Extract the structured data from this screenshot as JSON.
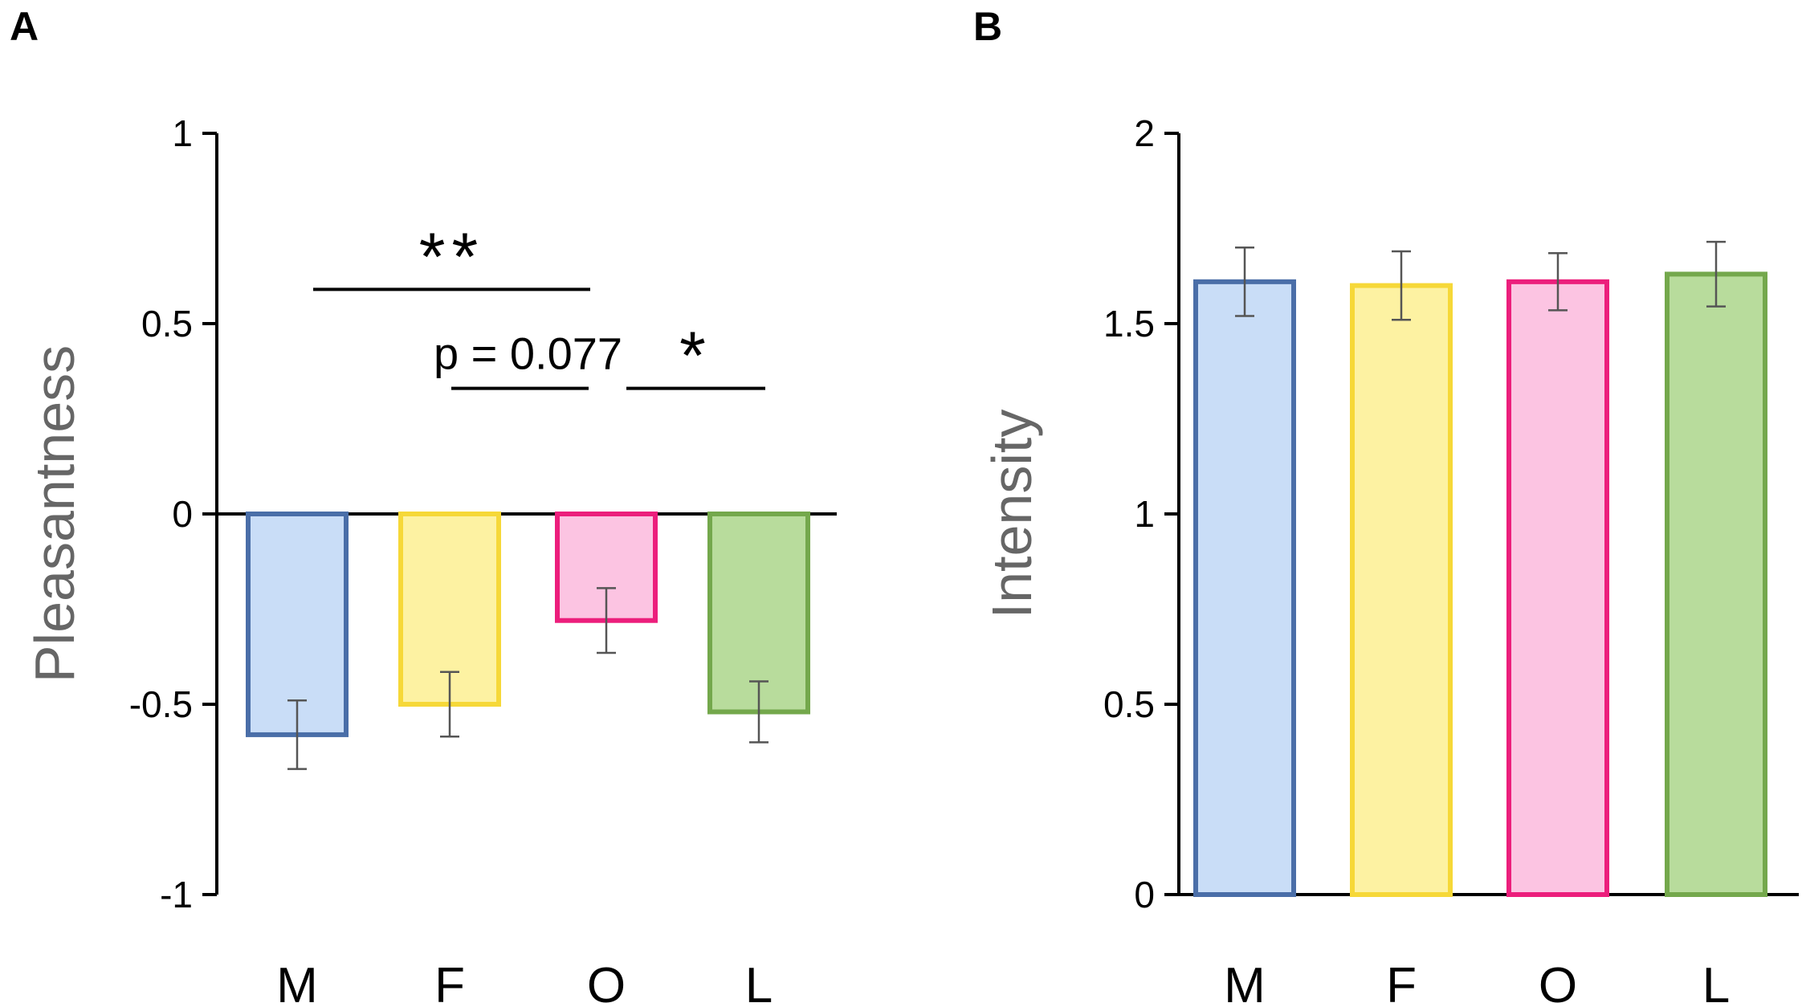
{
  "chart_data": [
    {
      "panel": "A",
      "type": "bar",
      "title": "",
      "xlabel": "",
      "ylabel": "Pleasantness",
      "ylim": [
        -1,
        1
      ],
      "yticks": [
        "1",
        "0.5",
        "0",
        "-0.5",
        "-1"
      ],
      "categories": [
        "M",
        "F",
        "O",
        "L"
      ],
      "values": [
        -0.58,
        -0.5,
        -0.28,
        -0.52
      ],
      "errors": [
        0.09,
        0.085,
        0.085,
        0.08
      ],
      "colors": {
        "fill": [
          "#c9ddf7",
          "#fdf2a2",
          "#fcc4e2",
          "#b8dc9c"
        ],
        "edge": [
          "#4a6ea8",
          "#f6d838",
          "#ec1e7c",
          "#74a84c"
        ]
      },
      "annotations": [
        {
          "from": "M",
          "to": "O",
          "level": 0.59,
          "label": "**"
        },
        {
          "from": "F",
          "to": "O",
          "level": 0.33,
          "label": "p = 0.077"
        },
        {
          "from": "O",
          "to": "L",
          "level": 0.33,
          "label": "*"
        }
      ],
      "grid": false
    },
    {
      "panel": "B",
      "type": "bar",
      "title": "",
      "xlabel": "",
      "ylabel": "Intensity",
      "ylim": [
        0,
        2
      ],
      "yticks": [
        "2",
        "1.5",
        "1",
        "0.5",
        "0"
      ],
      "categories": [
        "M",
        "F",
        "O",
        "L"
      ],
      "values": [
        1.61,
        1.6,
        1.61,
        1.63
      ],
      "errors": [
        0.09,
        0.09,
        0.075,
        0.085
      ],
      "colors": {
        "fill": [
          "#c9ddf7",
          "#fdf2a2",
          "#fcc4e2",
          "#b8dc9c"
        ],
        "edge": [
          "#4a6ea8",
          "#f6d838",
          "#ec1e7c",
          "#74a84c"
        ]
      },
      "grid": false
    }
  ]
}
